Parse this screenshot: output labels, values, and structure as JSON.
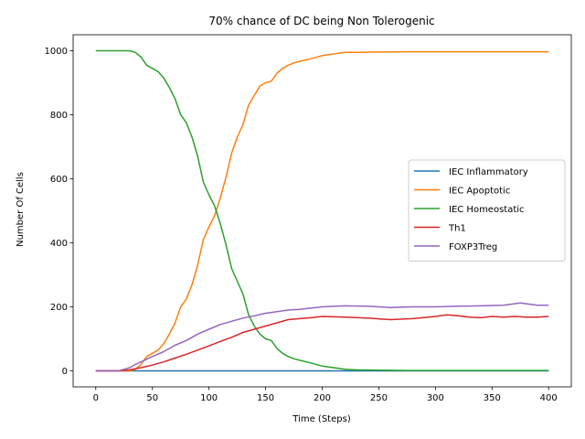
{
  "chart_data": {
    "type": "line",
    "title": "70% chance of DC being Non Tolerogenic",
    "xlabel": "Time (Steps)",
    "ylabel": "Number Of Cells",
    "xlim": [
      -20,
      420
    ],
    "ylim": [
      -50,
      1050
    ],
    "xticks": [
      0,
      50,
      100,
      150,
      200,
      250,
      300,
      350,
      400
    ],
    "yticks": [
      0,
      200,
      400,
      600,
      800,
      1000
    ],
    "grid": false,
    "legend_position": "center-right",
    "series": [
      {
        "name": "IEC Inflammatory",
        "color": "#1f77b4",
        "x": [
          0,
          400
        ],
        "y": [
          0,
          0
        ]
      },
      {
        "name": "IEC Apoptotic",
        "color": "#ff7f0e",
        "x": [
          0,
          30,
          35,
          40,
          45,
          50,
          55,
          60,
          65,
          70,
          75,
          80,
          85,
          90,
          95,
          100,
          105,
          110,
          115,
          120,
          125,
          130,
          135,
          140,
          145,
          150,
          155,
          160,
          165,
          170,
          175,
          180,
          190,
          200,
          210,
          220,
          230,
          250,
          275,
          300,
          350,
          400
        ],
        "y": [
          0,
          0,
          5,
          20,
          45,
          55,
          65,
          85,
          115,
          150,
          200,
          225,
          270,
          330,
          410,
          450,
          485,
          540,
          605,
          680,
          730,
          770,
          830,
          860,
          890,
          900,
          905,
          930,
          945,
          955,
          962,
          967,
          975,
          985,
          990,
          995,
          995,
          996,
          997,
          997,
          997,
          997
        ]
      },
      {
        "name": "IEC Homeostatic",
        "color": "#2ca02c",
        "x": [
          0,
          30,
          35,
          40,
          45,
          50,
          55,
          60,
          65,
          70,
          75,
          80,
          85,
          90,
          95,
          100,
          105,
          110,
          115,
          120,
          125,
          130,
          135,
          140,
          145,
          150,
          155,
          160,
          165,
          170,
          175,
          180,
          190,
          200,
          210,
          220,
          230,
          250,
          275,
          300,
          350,
          400
        ],
        "y": [
          1000,
          1000,
          995,
          980,
          955,
          945,
          935,
          915,
          885,
          850,
          800,
          775,
          730,
          670,
          590,
          550,
          515,
          460,
          395,
          320,
          280,
          240,
          175,
          140,
          115,
          100,
          95,
          70,
          55,
          45,
          38,
          33,
          25,
          15,
          10,
          5,
          3,
          2,
          1,
          1,
          1,
          1
        ]
      },
      {
        "name": "Th1",
        "color": "#d62728",
        "x": [
          0,
          20,
          30,
          40,
          50,
          60,
          70,
          80,
          90,
          100,
          110,
          120,
          130,
          140,
          150,
          160,
          170,
          180,
          190,
          200,
          220,
          240,
          260,
          280,
          300,
          310,
          320,
          330,
          340,
          350,
          360,
          370,
          380,
          390,
          400
        ],
        "y": [
          0,
          0,
          3,
          10,
          18,
          28,
          40,
          52,
          65,
          78,
          92,
          105,
          120,
          130,
          140,
          150,
          160,
          163,
          166,
          170,
          168,
          165,
          160,
          163,
          170,
          175,
          172,
          168,
          166,
          170,
          168,
          170,
          168,
          168,
          170
        ]
      },
      {
        "name": "FOXP3Treg",
        "color": "#9467bd",
        "x": [
          0,
          20,
          25,
          30,
          35,
          40,
          50,
          60,
          70,
          80,
          90,
          100,
          110,
          120,
          130,
          140,
          150,
          160,
          170,
          180,
          190,
          200,
          220,
          240,
          260,
          280,
          300,
          320,
          340,
          360,
          375,
          390,
          400
        ],
        "y": [
          0,
          0,
          5,
          10,
          20,
          28,
          45,
          60,
          80,
          95,
          115,
          130,
          145,
          155,
          165,
          172,
          180,
          185,
          190,
          192,
          196,
          200,
          203,
          202,
          198,
          200,
          200,
          202,
          203,
          205,
          212,
          205,
          205
        ]
      }
    ]
  }
}
